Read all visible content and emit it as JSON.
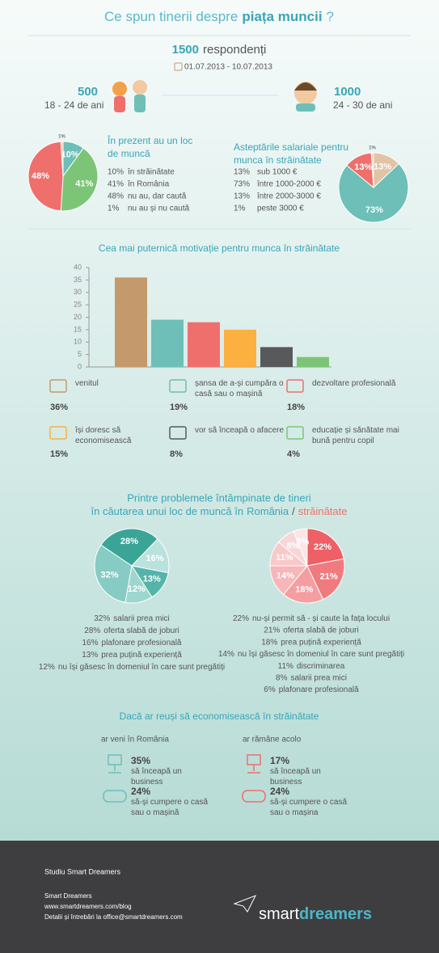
{
  "header": {
    "title": [
      "Ce spun tinerii despre",
      "piața muncii",
      "?"
    ],
    "respondents": "1500",
    "respondents_label": "respondenți",
    "period": "01.07.2013 - 10.07.2013"
  },
  "groups": [
    {
      "count": "500",
      "age": "18 - 24 de ani"
    },
    {
      "count": "1000",
      "age": "24 - 30 de ani"
    }
  ],
  "chart_data": [
    {
      "type": "pie",
      "title": "În prezent au un loc de muncă",
      "categories": [
        "în străinătate",
        "în România",
        "nu au, dar caută",
        "nu au și nu caută"
      ],
      "values": [
        10,
        41,
        48,
        1
      ],
      "value_labels": [
        "10%",
        "41%",
        "48%",
        "1%"
      ],
      "colors": [
        "#6dbfb8",
        "#7cc576",
        "#ef6f6c",
        "#e8cdb0"
      ]
    },
    {
      "type": "pie",
      "title": "Asteptările salariale pentru munca în străinătate",
      "categories": [
        "sub 1000 €",
        "între 1000-2000 €",
        "între 2000-3000 €",
        "peste 3000 €"
      ],
      "values": [
        13,
        73,
        13,
        1
      ],
      "value_labels": [
        "13%",
        "73%",
        "13%",
        "1%"
      ],
      "colors": [
        "#e0c4a4",
        "#6dbfb8",
        "#ef6f6c",
        "#d9d2c8"
      ]
    },
    {
      "type": "bar",
      "title": "Cea mai puternică motivație pentru munca în străinătate",
      "categories": [
        "venitul",
        "șansa de a-și cumpăra o casă sau o mașină",
        "dezvoltare profesională",
        "își doresc să economisească",
        "vor să înceapă o afacere",
        "educație și sănătate mai bună pentru copil"
      ],
      "values": [
        36,
        19,
        18,
        15,
        8,
        4
      ],
      "value_labels": [
        "36%",
        "19%",
        "18%",
        "15%",
        "8%",
        "4%"
      ],
      "colors": [
        "#c49a6c",
        "#6dbfb8",
        "#ef6f6c",
        "#fbb040",
        "#58595b",
        "#7cc576"
      ],
      "ylim": [
        0,
        40
      ],
      "yticks": [
        0,
        5,
        10,
        15,
        20,
        25,
        30,
        35,
        40
      ]
    },
    {
      "type": "pie",
      "categories": [
        "salarii prea mici",
        "oferta slabă de joburi",
        "plafonare profesională",
        "prea puțină experiență",
        "nu își găsesc în domeniul în care sunt pregătiți"
      ],
      "values": [
        32,
        28,
        16,
        13,
        12
      ],
      "value_labels": [
        "32%",
        "28%",
        "16%",
        "13%",
        "12%"
      ],
      "colors": [
        "#86ccc4",
        "#3aa597",
        "#b9e2dd",
        "#55b4a9",
        "#9dd6cf"
      ]
    },
    {
      "type": "pie",
      "categories": [
        "nu-și permit să - și caute la fața locului",
        "oferta slabă de joburi",
        "prea puțină experiență",
        "nu își găsesc în domeniul în care sunt pregătiți",
        "discriminarea",
        "salarii prea mici",
        "plafonare profesională"
      ],
      "values": [
        22,
        21,
        18,
        14,
        11,
        8,
        6
      ],
      "value_labels": [
        "22%",
        "21%",
        "18%",
        "14%",
        "11%",
        "8%",
        "6%"
      ],
      "colors": [
        "#ef5f66",
        "#f07b7f",
        "#f59ea1",
        "#f7b6b8",
        "#f9c9ca",
        "#f8d6d7",
        "#fbe6e6"
      ]
    }
  ],
  "problems_title": [
    "Printre problemele întâmpinate de tineri",
    "în căutarea unui loc de muncă în",
    "România",
    "/",
    "străinătate"
  ],
  "savings": {
    "title": "Dacă ar reuși să economisească în străinătate",
    "columns": [
      {
        "heading": "ar veni în România",
        "items": [
          {
            "value": "35%",
            "text": "să înceapă un business"
          },
          {
            "value": "24%",
            "text": "să-și cumpere o casă sau o mașină"
          }
        ]
      },
      {
        "heading": "ar rămâne acolo",
        "items": [
          {
            "value": "17%",
            "text": "să înceapă un business"
          },
          {
            "value": "24%",
            "text": "să-și cumpere o casă sau o mașina"
          }
        ]
      }
    ]
  },
  "footer": {
    "study": "Studiu Smart Dreamers",
    "company": "Smart Dreamers",
    "url": "www.smartdreamers.com/blog",
    "contact": "Detalii și întrebări la office@smartdreamers.com",
    "logo": [
      "smart",
      "dreamers"
    ]
  }
}
